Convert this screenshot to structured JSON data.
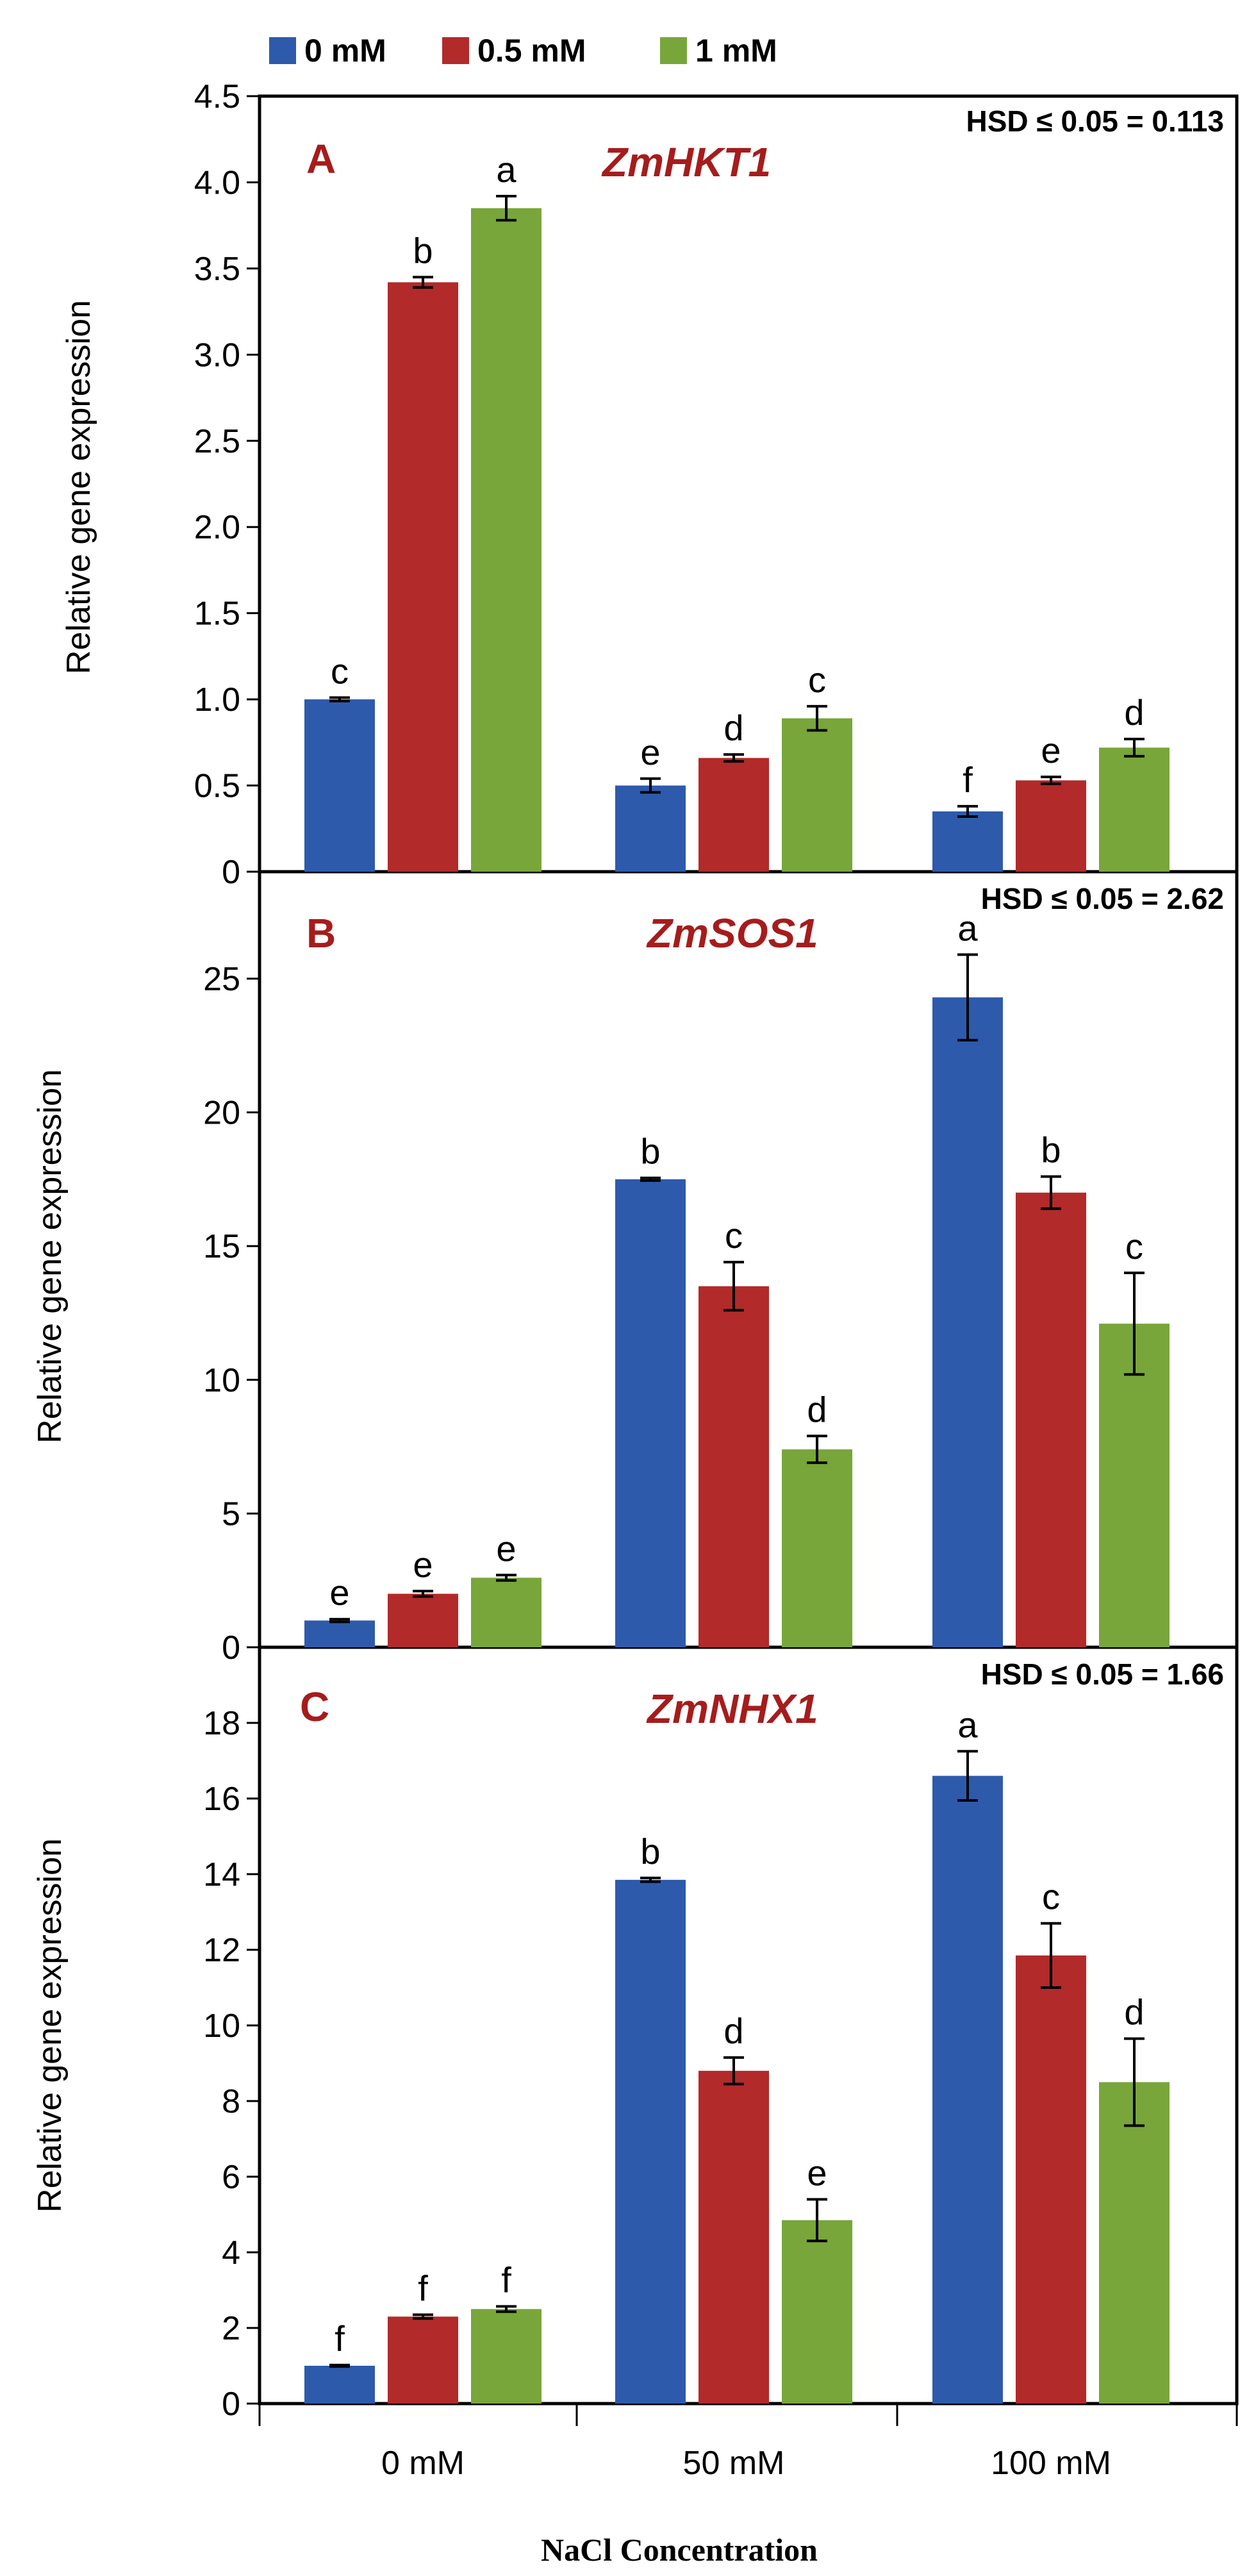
{
  "legend": [
    {
      "label": "0 mM",
      "color": "#2e5aac"
    },
    {
      "label": "0.5 mM",
      "color": "#b22a2a"
    },
    {
      "label": "1 mM",
      "color": "#78a63a"
    }
  ],
  "x_axis": {
    "title": "NaCl Concentration",
    "categories": [
      "0 mM",
      "50 mM",
      "100 mM"
    ]
  },
  "chart_data": [
    {
      "type": "bar",
      "panel_label": "A",
      "title": "ZmHKT1",
      "hsd_text": "HSD ≤ 0.05 = 0.113",
      "ylabel": "Relative gene expression",
      "ylim": [
        0,
        4.5
      ],
      "yticks": [
        "0",
        "0.5",
        "1.0",
        "1.5",
        "2.0",
        "2.5",
        "3.0",
        "3.5",
        "4.0",
        "4.5"
      ],
      "ytick_values": [
        0,
        0.5,
        1.0,
        1.5,
        2.0,
        2.5,
        3.0,
        3.5,
        4.0,
        4.5
      ],
      "categories": [
        "0 mM",
        "50 mM",
        "100 mM"
      ],
      "series": [
        {
          "name": "0 mM",
          "values": [
            1.0,
            0.5,
            0.35
          ],
          "errors": [
            0.01,
            0.04,
            0.03
          ],
          "letters": [
            "c",
            "e",
            "f"
          ]
        },
        {
          "name": "0.5 mM",
          "values": [
            3.42,
            0.66,
            0.53
          ],
          "errors": [
            0.03,
            0.02,
            0.02
          ],
          "letters": [
            "b",
            "d",
            "e"
          ]
        },
        {
          "name": "1 mM",
          "values": [
            3.85,
            0.89,
            0.72
          ],
          "errors": [
            0.07,
            0.07,
            0.05
          ],
          "letters": [
            "a",
            "c",
            "d"
          ]
        }
      ]
    },
    {
      "type": "bar",
      "panel_label": "B",
      "title": "ZmSOS1",
      "hsd_text": "HSD ≤ 0.05 = 2.62",
      "ylabel": "Relative gene expression",
      "ylim": [
        0,
        29
      ],
      "yticks": [
        "0",
        "5",
        "10",
        "15",
        "20",
        "25"
      ],
      "ytick_values": [
        0,
        5,
        10,
        15,
        20,
        25
      ],
      "categories": [
        "0 mM",
        "50 mM",
        "100 mM"
      ],
      "series": [
        {
          "name": "0 mM",
          "values": [
            1.0,
            17.5,
            24.3
          ],
          "errors": [
            0.05,
            0.05,
            1.6
          ],
          "letters": [
            "e",
            "b",
            "a"
          ]
        },
        {
          "name": "0.5 mM",
          "values": [
            2.0,
            13.5,
            17.0
          ],
          "errors": [
            0.1,
            0.9,
            0.6
          ],
          "letters": [
            "e",
            "c",
            "b"
          ]
        },
        {
          "name": "1 mM",
          "values": [
            2.6,
            7.4,
            12.1
          ],
          "errors": [
            0.1,
            0.5,
            1.9
          ],
          "letters": [
            "e",
            "d",
            "c"
          ]
        }
      ]
    },
    {
      "type": "bar",
      "panel_label": "C",
      "title": "ZmNHX1",
      "hsd_text": "HSD ≤ 0.05 = 1.66",
      "ylabel": "Relative  gene expression",
      "ylim": [
        0,
        20
      ],
      "yticks": [
        "0",
        "2",
        "4",
        "6",
        "8",
        "10",
        "12",
        "14",
        "16",
        "18"
      ],
      "ytick_values": [
        0,
        2,
        4,
        6,
        8,
        10,
        12,
        14,
        16,
        18
      ],
      "categories": [
        "0 mM",
        "50 mM",
        "100 mM"
      ],
      "series": [
        {
          "name": "0 mM",
          "values": [
            1.0,
            13.85,
            16.6
          ],
          "errors": [
            0.02,
            0.05,
            0.65
          ],
          "letters": [
            "f",
            "b",
            "a"
          ]
        },
        {
          "name": "0.5 mM",
          "values": [
            2.3,
            8.8,
            11.85
          ],
          "errors": [
            0.05,
            0.35,
            0.85
          ],
          "letters": [
            "f",
            "d",
            "c"
          ]
        },
        {
          "name": "1 mM",
          "values": [
            2.5,
            4.85,
            8.5
          ],
          "errors": [
            0.07,
            0.55,
            1.15
          ],
          "letters": [
            "f",
            "e",
            "d"
          ]
        }
      ]
    }
  ]
}
